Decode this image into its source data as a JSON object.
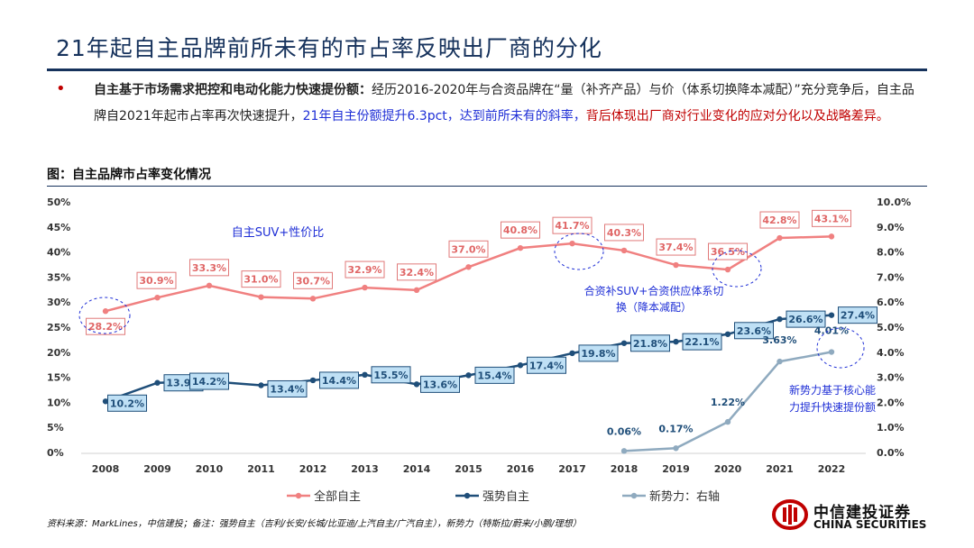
{
  "slide": {
    "title": "21年起自主品牌前所未有的市占率反映出厂商的分化",
    "bullet": {
      "lead": "自主基于市场需求把控和电动化能力快速提份额：",
      "body": "经历2016-2020年与合资品牌在“量（补齐产品）与价（体系切换降本减配）”充分竞争后，自主品牌自2021年起市占率再次快速提升，",
      "highlight_blue": "21年自主份额提升6.3pct，达到前所未有的斜率，",
      "highlight_red": "背后体现出厂商对行业变化的应对分化以及战略差异。"
    },
    "figure_caption": "图：自主品牌市占率变化情况",
    "source": "资料来源：MarkLines，中信建投；备注：强势自主（吉利/长安/长城/比亚迪/上汽自主/广汽自主），新势力（特斯拉/蔚来/小鹏/理想）",
    "logo": {
      "cn": "中信建投证券",
      "en": "CHINA SECURITIES",
      "accent": "#c00000"
    }
  },
  "chart_data": {
    "type": "line",
    "categories": [
      "2008",
      "2009",
      "2010",
      "2011",
      "2012",
      "2013",
      "2014",
      "2015",
      "2016",
      "2017",
      "2018",
      "2019",
      "2020",
      "2021",
      "2022"
    ],
    "left_axis": {
      "ylim": [
        0,
        50
      ],
      "ticks": [
        "0%",
        "5%",
        "10%",
        "15%",
        "20%",
        "25%",
        "30%",
        "35%",
        "40%",
        "45%",
        "50%"
      ]
    },
    "right_axis": {
      "ylim": [
        0,
        10
      ],
      "ticks": [
        "0.0%",
        "1.0%",
        "2.0%",
        "3.0%",
        "4.0%",
        "5.0%",
        "6.0%",
        "7.0%",
        "8.0%",
        "9.0%",
        "10.0%"
      ]
    },
    "series": [
      {
        "name": "全部自主",
        "axis": "left",
        "color": "#f08080",
        "values": [
          28.2,
          30.9,
          33.3,
          31.0,
          30.7,
          32.9,
          32.4,
          37.0,
          40.8,
          41.7,
          40.3,
          37.4,
          36.5,
          42.8,
          43.1
        ],
        "labels": [
          "28.2%",
          "30.9%",
          "33.3%",
          "31.0%",
          "30.7%",
          "32.9%",
          "32.4%",
          "37.0%",
          "40.8%",
          "41.7%",
          "40.3%",
          "37.4%",
          "36.5%",
          "42.8%",
          "43.1%"
        ]
      },
      {
        "name": "强势自主",
        "axis": "left",
        "color": "#1f4e79",
        "values": [
          10.2,
          13.9,
          14.2,
          13.4,
          14.4,
          15.5,
          13.6,
          15.4,
          17.4,
          19.8,
          21.8,
          22.1,
          23.6,
          26.6,
          27.4
        ],
        "labels": [
          "10.2%",
          "13.9%",
          "14.2%",
          "13.4%",
          "14.4%",
          "15.5%",
          "13.6%",
          "15.4%",
          "17.4%",
          "19.8%",
          "21.8%",
          "22.1%",
          "23.6%",
          "26.6%",
          "27.4%"
        ]
      },
      {
        "name": "新势力：右轴",
        "axis": "right",
        "color": "#8faabf",
        "x": [
          "2018",
          "2019",
          "2020",
          "2021",
          "2022"
        ],
        "values": [
          0.06,
          0.17,
          1.22,
          3.63,
          4.01
        ],
        "labels": [
          "0.06%",
          "0.17%",
          "1.22%",
          "3.63%",
          "4.01%"
        ]
      }
    ],
    "legend_position": "bottom",
    "annotations": [
      {
        "text": "自主SUV+性价比",
        "color": "#1f2fd6"
      },
      {
        "text": "合资补SUV+合资供应体系切换（降本减配）",
        "color": "#1f2fd6"
      },
      {
        "text": "新势力基于核心能力提升快速提份额",
        "color": "#1f2fd6"
      }
    ]
  }
}
